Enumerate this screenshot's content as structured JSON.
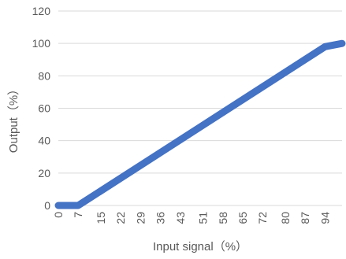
{
  "chart_data": {
    "type": "line",
    "title": "",
    "xlabel": "Input signal（%）",
    "ylabel": "Output（%）",
    "ylim": [
      0,
      120
    ],
    "yticks": [
      0,
      20,
      40,
      60,
      80,
      100,
      120
    ],
    "xlim": [
      0,
      100
    ],
    "xticks": [
      0,
      7,
      15,
      22,
      29,
      36,
      43,
      51,
      58,
      65,
      72,
      80,
      87,
      94
    ],
    "grid": "horizontal",
    "legend": "none",
    "series": [
      {
        "color": "#4472c4",
        "x": [
          0,
          7,
          94,
          100
        ],
        "y": [
          0,
          0,
          98,
          100
        ]
      }
    ]
  }
}
